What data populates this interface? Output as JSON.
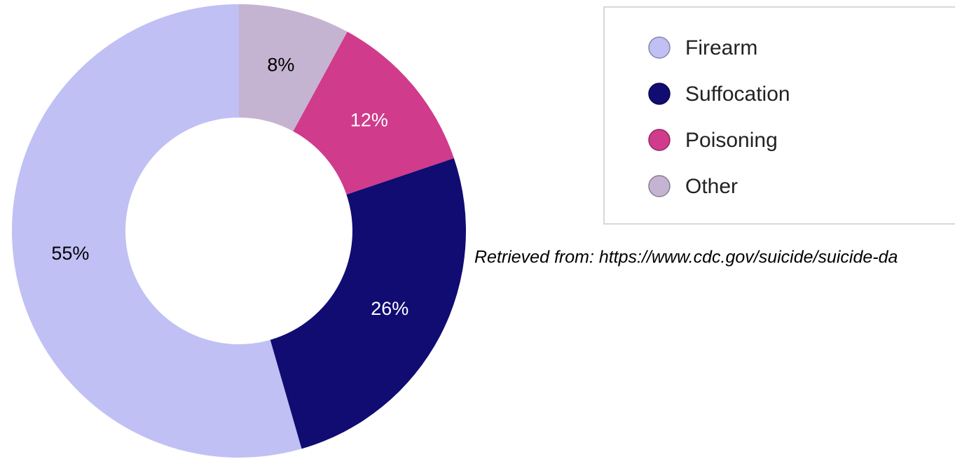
{
  "chart_data": {
    "type": "donut",
    "categories": [
      "Firearm",
      "Suffocation",
      "Poisoning",
      "Other"
    ],
    "values": [
      55,
      26,
      12,
      8
    ],
    "value_labels": [
      "55%",
      "26%",
      "12%",
      "8%"
    ],
    "colors": [
      "#c0c0f5",
      "#110c72",
      "#d03b8c",
      "#c5b4d1"
    ],
    "source": "Retrieved from: https://www.cdc.gov/suicide/suicide-da"
  }
}
